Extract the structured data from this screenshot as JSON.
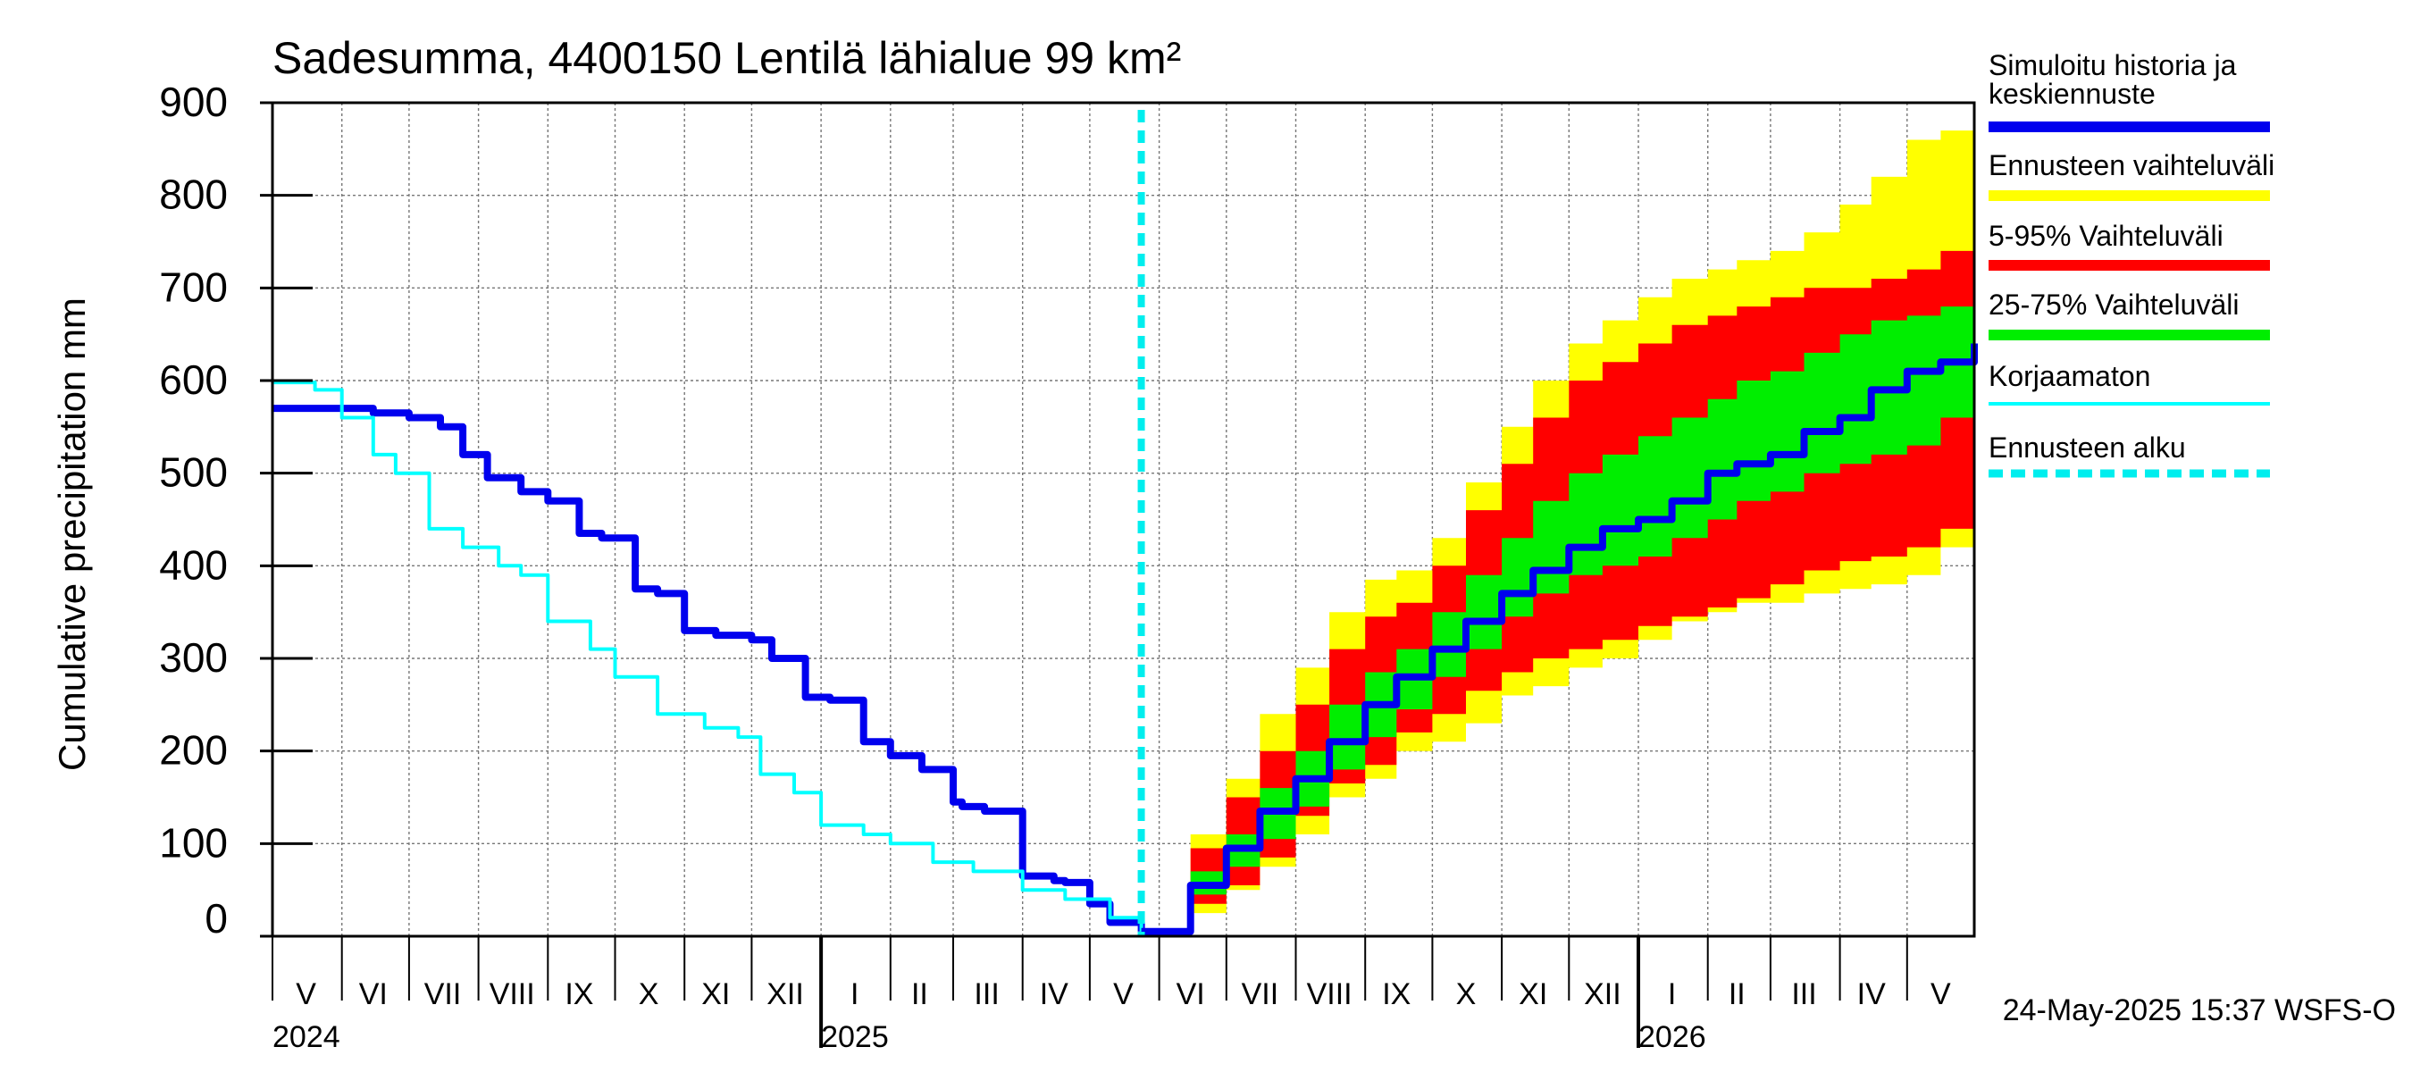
{
  "chart_data": {
    "type": "area",
    "title": "Sadesumma, 4400150 Lentilä lähialue 99 km²",
    "ylabel": "Cumulative precipitation   mm",
    "ylim": [
      0,
      900
    ],
    "yticks": [
      0,
      100,
      200,
      300,
      400,
      500,
      600,
      700,
      800,
      900
    ],
    "xlim": [
      "2024-05-01",
      "2026-05-31"
    ],
    "forecast_start": "2025-05-24",
    "month_labels": [
      {
        "label": "V",
        "date": "2024-05-16"
      },
      {
        "label": "VI",
        "date": "2024-06-15"
      },
      {
        "label": "VII",
        "date": "2024-07-16"
      },
      {
        "label": "VIII",
        "date": "2024-08-16"
      },
      {
        "label": "IX",
        "date": "2024-09-15"
      },
      {
        "label": "X",
        "date": "2024-10-16"
      },
      {
        "label": "XI",
        "date": "2024-11-15"
      },
      {
        "label": "XII",
        "date": "2024-12-16"
      },
      {
        "label": "I",
        "date": "2025-01-16"
      },
      {
        "label": "II",
        "date": "2025-02-14"
      },
      {
        "label": "III",
        "date": "2025-03-16"
      },
      {
        "label": "IV",
        "date": "2025-04-15"
      },
      {
        "label": "V",
        "date": "2025-05-16"
      },
      {
        "label": "VI",
        "date": "2025-06-15"
      },
      {
        "label": "VII",
        "date": "2025-07-16"
      },
      {
        "label": "VIII",
        "date": "2025-08-16"
      },
      {
        "label": "IX",
        "date": "2025-09-15"
      },
      {
        "label": "X",
        "date": "2025-10-16"
      },
      {
        "label": "XI",
        "date": "2025-11-15"
      },
      {
        "label": "XII",
        "date": "2025-12-16"
      },
      {
        "label": "I",
        "date": "2026-01-16"
      },
      {
        "label": "II",
        "date": "2026-02-14"
      },
      {
        "label": "III",
        "date": "2026-03-16"
      },
      {
        "label": "IV",
        "date": "2026-04-15"
      },
      {
        "label": "V",
        "date": "2026-05-16"
      }
    ],
    "year_labels": [
      {
        "label": "2024",
        "date": "2024-05-01"
      },
      {
        "label": "2025",
        "date": "2025-01-01"
      },
      {
        "label": "2026",
        "date": "2026-01-01"
      }
    ],
    "legend": {
      "placement": "right",
      "items": [
        {
          "label": "Simuloitu historia ja",
          "label2": "keskiennuste",
          "color": "#0000ee",
          "style": "thick"
        },
        {
          "label": "Ennusteen vaihteluväli",
          "color": "#ffff00",
          "style": "thick"
        },
        {
          "label": "5-95% Vaihteluväli",
          "color": "#ff0000",
          "style": "thick"
        },
        {
          "label": "25-75% Vaihteluväli",
          "color": "#00ee00",
          "style": "thick"
        },
        {
          "label": "Korjaamaton",
          "color": "#00ffff",
          "style": "thin"
        },
        {
          "label": "Ennusteen alku",
          "color": "#00eeee",
          "style": "dashed"
        }
      ]
    },
    "series": [
      {
        "name": "Simuloitu historia ja keskiennuste",
        "color": "#0000ee",
        "x": [
          "2024-05-01",
          "2024-06-15",
          "2024-07-01",
          "2024-07-15",
          "2024-07-25",
          "2024-08-05",
          "2024-08-20",
          "2024-09-01",
          "2024-09-15",
          "2024-09-25",
          "2024-10-10",
          "2024-10-20",
          "2024-11-01",
          "2024-11-15",
          "2024-12-01",
          "2024-12-10",
          "2024-12-25",
          "2025-01-05",
          "2025-01-20",
          "2025-02-01",
          "2025-02-15",
          "2025-03-01",
          "2025-03-05",
          "2025-03-15",
          "2025-04-01",
          "2025-04-15",
          "2025-04-20",
          "2025-05-01",
          "2025-05-10",
          "2025-05-24"
        ],
        "y": [
          570,
          565,
          560,
          550,
          520,
          495,
          480,
          470,
          435,
          430,
          375,
          370,
          330,
          325,
          320,
          300,
          258,
          255,
          210,
          195,
          180,
          145,
          140,
          135,
          65,
          60,
          58,
          35,
          15,
          5
        ]
      },
      {
        "name": "Korjaamaton",
        "color": "#00ffff",
        "x": [
          "2024-05-01",
          "2024-05-20",
          "2024-06-01",
          "2024-06-15",
          "2024-06-25",
          "2024-07-10",
          "2024-07-25",
          "2024-08-10",
          "2024-08-20",
          "2024-09-01",
          "2024-09-20",
          "2024-10-01",
          "2024-10-20",
          "2024-11-10",
          "2024-11-25",
          "2024-12-05",
          "2024-12-20",
          "2025-01-01",
          "2025-01-20",
          "2025-02-01",
          "2025-02-20",
          "2025-03-10",
          "2025-04-01",
          "2025-04-20",
          "2025-05-10",
          "2025-05-24"
        ],
        "y": [
          598,
          590,
          560,
          520,
          500,
          440,
          420,
          400,
          390,
          340,
          310,
          280,
          240,
          225,
          215,
          175,
          155,
          120,
          110,
          100,
          80,
          70,
          50,
          40,
          20,
          5
        ]
      },
      {
        "name": "Ennusteen vaihteluväli",
        "color": "#ffff00",
        "x": [
          "2025-05-24",
          "2025-06-15",
          "2025-07-01",
          "2025-07-16",
          "2025-08-01",
          "2025-08-16",
          "2025-09-01",
          "2025-09-15",
          "2025-10-01",
          "2025-10-16",
          "2025-11-01",
          "2025-11-15",
          "2025-12-01",
          "2025-12-16",
          "2026-01-01",
          "2026-01-16",
          "2026-02-01",
          "2026-02-14",
          "2026-03-01",
          "2026-03-16",
          "2026-04-01",
          "2026-04-15",
          "2026-05-01",
          "2026-05-16",
          "2026-05-31"
        ],
        "high": [
          5,
          110,
          170,
          240,
          290,
          350,
          385,
          395,
          430,
          490,
          550,
          600,
          640,
          665,
          690,
          710,
          720,
          730,
          740,
          760,
          790,
          820,
          860,
          870,
          880
        ],
        "low": [
          5,
          25,
          50,
          75,
          110,
          150,
          170,
          200,
          210,
          230,
          260,
          270,
          290,
          300,
          320,
          340,
          350,
          360,
          360,
          370,
          375,
          380,
          390,
          420,
          450
        ]
      },
      {
        "name": "5-95% Vaihteluväli",
        "color": "#ff0000",
        "x": [
          "2025-05-24",
          "2025-06-15",
          "2025-07-01",
          "2025-07-16",
          "2025-08-01",
          "2025-08-16",
          "2025-09-01",
          "2025-09-15",
          "2025-10-01",
          "2025-10-16",
          "2025-11-01",
          "2025-11-15",
          "2025-12-01",
          "2025-12-16",
          "2026-01-01",
          "2026-01-16",
          "2026-02-01",
          "2026-02-14",
          "2026-03-01",
          "2026-03-16",
          "2026-04-01",
          "2026-04-15",
          "2026-05-01",
          "2026-05-16",
          "2026-05-31"
        ],
        "high": [
          5,
          95,
          150,
          200,
          250,
          310,
          345,
          360,
          400,
          460,
          510,
          560,
          600,
          620,
          640,
          660,
          670,
          680,
          690,
          700,
          700,
          710,
          720,
          740,
          760
        ],
        "low": [
          5,
          35,
          55,
          85,
          130,
          165,
          185,
          220,
          240,
          265,
          285,
          300,
          310,
          320,
          335,
          345,
          355,
          365,
          380,
          395,
          405,
          410,
          420,
          440,
          460
        ]
      },
      {
        "name": "25-75% Vaihteluväli",
        "color": "#00ee00",
        "x": [
          "2025-05-24",
          "2025-06-15",
          "2025-07-01",
          "2025-07-16",
          "2025-08-01",
          "2025-08-16",
          "2025-09-01",
          "2025-09-15",
          "2025-10-01",
          "2025-10-16",
          "2025-11-01",
          "2025-11-15",
          "2025-12-01",
          "2025-12-16",
          "2026-01-01",
          "2026-01-16",
          "2026-02-01",
          "2026-02-14",
          "2026-03-01",
          "2026-03-16",
          "2026-04-01",
          "2026-04-15",
          "2026-05-01",
          "2026-05-16",
          "2026-05-31"
        ],
        "high": [
          5,
          70,
          110,
          160,
          200,
          250,
          285,
          310,
          350,
          390,
          430,
          470,
          500,
          520,
          540,
          560,
          580,
          600,
          610,
          630,
          650,
          665,
          670,
          680,
          700
        ],
        "low": [
          5,
          45,
          75,
          105,
          140,
          180,
          215,
          245,
          280,
          310,
          345,
          370,
          390,
          400,
          410,
          430,
          450,
          470,
          480,
          500,
          510,
          520,
          530,
          560,
          590
        ]
      },
      {
        "name": "Keskiennuste",
        "color": "#0000ee",
        "x": [
          "2025-05-24",
          "2025-06-15",
          "2025-07-01",
          "2025-07-16",
          "2025-08-01",
          "2025-08-16",
          "2025-09-01",
          "2025-09-15",
          "2025-10-01",
          "2025-10-16",
          "2025-11-01",
          "2025-11-15",
          "2025-12-01",
          "2025-12-16",
          "2026-01-01",
          "2026-01-16",
          "2026-02-01",
          "2026-02-14",
          "2026-03-01",
          "2026-03-16",
          "2026-04-01",
          "2026-04-15",
          "2026-05-01",
          "2026-05-16",
          "2026-05-31"
        ],
        "y": [
          5,
          55,
          95,
          135,
          170,
          210,
          250,
          280,
          310,
          340,
          370,
          395,
          420,
          440,
          450,
          470,
          500,
          510,
          520,
          545,
          560,
          590,
          610,
          620,
          640
        ]
      }
    ],
    "footer": "24-May-2025 15:37 WSFS-O"
  }
}
